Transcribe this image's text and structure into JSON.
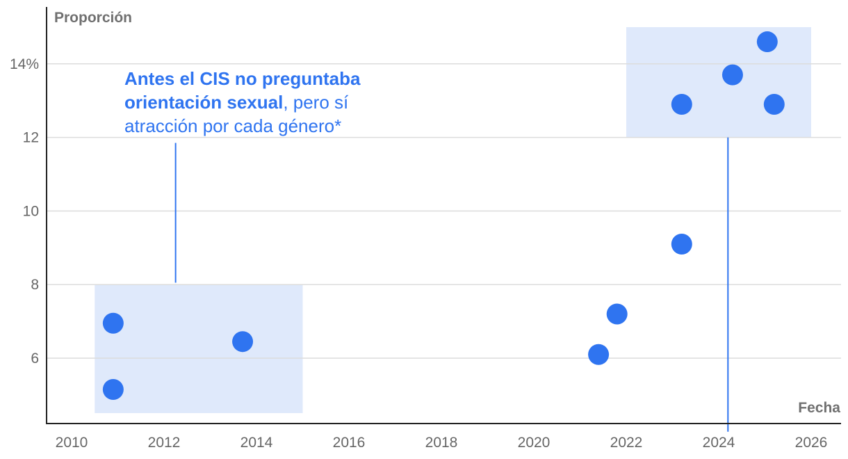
{
  "chart_data": {
    "type": "scatter",
    "ylabel": "Proporción",
    "xlabel": "Fecha",
    "xlim": [
      2010,
      2026
    ],
    "ylim": [
      4.5,
      15
    ],
    "x_ticks": [
      2010,
      2012,
      2014,
      2016,
      2018,
      2020,
      2022,
      2024,
      2026
    ],
    "x_tick_labels": [
      "2010",
      "2012",
      "2014",
      "2016",
      "2018",
      "2020",
      "2022",
      "2024",
      "2026"
    ],
    "y_ticks": [
      6,
      8,
      10,
      12,
      14
    ],
    "y_tick_labels": [
      "6",
      "8",
      "10",
      "12",
      "14%"
    ],
    "grid": true,
    "point_color": "#2f74f0",
    "highlight_color": "#dfe9fb",
    "points": [
      {
        "date": "2010-12",
        "x": 2010.9,
        "y": 6.95
      },
      {
        "date": "2010-12",
        "x": 2010.9,
        "y": 5.15
      },
      {
        "date": "2013-09",
        "x": 2013.7,
        "y": 6.45
      },
      {
        "date": "2021-05",
        "x": 2021.4,
        "y": 6.1
      },
      {
        "date": "2021-10",
        "x": 2021.8,
        "y": 7.2
      },
      {
        "date": "2023-03",
        "x": 2023.2,
        "y": 9.1
      },
      {
        "date": "2023-03",
        "x": 2023.2,
        "y": 12.9
      },
      {
        "date": "2024-04",
        "x": 2024.3,
        "y": 13.7
      },
      {
        "date": "2025-01",
        "x": 2025.05,
        "y": 14.6
      },
      {
        "date": "2025-03",
        "x": 2025.2,
        "y": 12.9
      }
    ],
    "highlight_regions": [
      {
        "x0": 2010.5,
        "x1": 2015.0,
        "y0": 4.5,
        "y1": 8.0
      },
      {
        "x0": 2022.0,
        "x1": 2026.0,
        "y0": 12.0,
        "y1": 15.0
      }
    ],
    "reference_lines": [
      {
        "x": 2012.25,
        "y0": 8.05,
        "y1": 11.85
      },
      {
        "x": 2024.2,
        "y0": 4.0,
        "y1": 12.0
      }
    ],
    "annotation": {
      "bold_text": "Antes el CIS no preguntaba orientación sexual",
      "normal_text": ", pero sí atracción por cada género*"
    }
  }
}
